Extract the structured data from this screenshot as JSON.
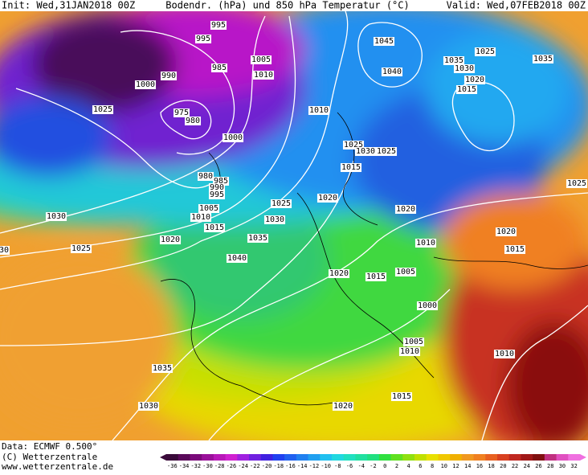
{
  "header": {
    "init": "Init: Wed,31JAN2018 00Z",
    "title": "Bodendr. (hPa) und 850 hPa Temperatur (°C)",
    "valid": "Valid: Wed,07FEB2018 00Z"
  },
  "footer": {
    "data": "Data: ECMWF  0.500°",
    "copyright": "(C) Wetterzentrale",
    "url": "www.wetterzentrale.de"
  },
  "isobar_labels": [
    995,
    995,
    1005,
    985,
    1010,
    990,
    1000,
    975,
    980,
    1025,
    1010,
    1045,
    1040,
    1035,
    1030,
    1025,
    1035,
    1020,
    1015,
    1000,
    1025,
    1030,
    1025,
    1015,
    980,
    985,
    990,
    995,
    1020,
    1025,
    1005,
    1010,
    1030,
    1030,
    1020,
    1015,
    1020,
    1035,
    1025,
    1010,
    1020,
    1015,
    30,
    1040,
    1020,
    1015,
    1005,
    1025,
    1000,
    1005,
    1010,
    1010,
    1035,
    1030,
    1020,
    1015
  ],
  "colorbar": {
    "ticks": [
      -36,
      -34,
      -32,
      -30,
      -28,
      -26,
      -24,
      -22,
      -20,
      -18,
      -16,
      -14,
      -12,
      -10,
      -8,
      -6,
      -4,
      -2,
      0,
      2,
      4,
      6,
      8,
      10,
      12,
      14,
      16,
      18,
      20,
      22,
      24,
      26,
      28,
      30,
      32
    ],
    "colors": [
      "#3a0a3a",
      "#5a0a5a",
      "#7a0a7a",
      "#9a109a",
      "#b818b8",
      "#d020d0",
      "#a020e0",
      "#7020e0",
      "#4020e0",
      "#2040f0",
      "#2060f0",
      "#2080f0",
      "#20a0f0",
      "#20c0f0",
      "#20d8e0",
      "#20e0c0",
      "#20e0a0",
      "#20e080",
      "#30e040",
      "#60e020",
      "#90e010",
      "#c0e000",
      "#e8e000",
      "#f0c800",
      "#f0b000",
      "#f09820",
      "#f08020",
      "#e86020",
      "#d84020",
      "#c02820",
      "#a01818",
      "#801010",
      "#c03080",
      "#e050c0",
      "#f070e0"
    ]
  }
}
